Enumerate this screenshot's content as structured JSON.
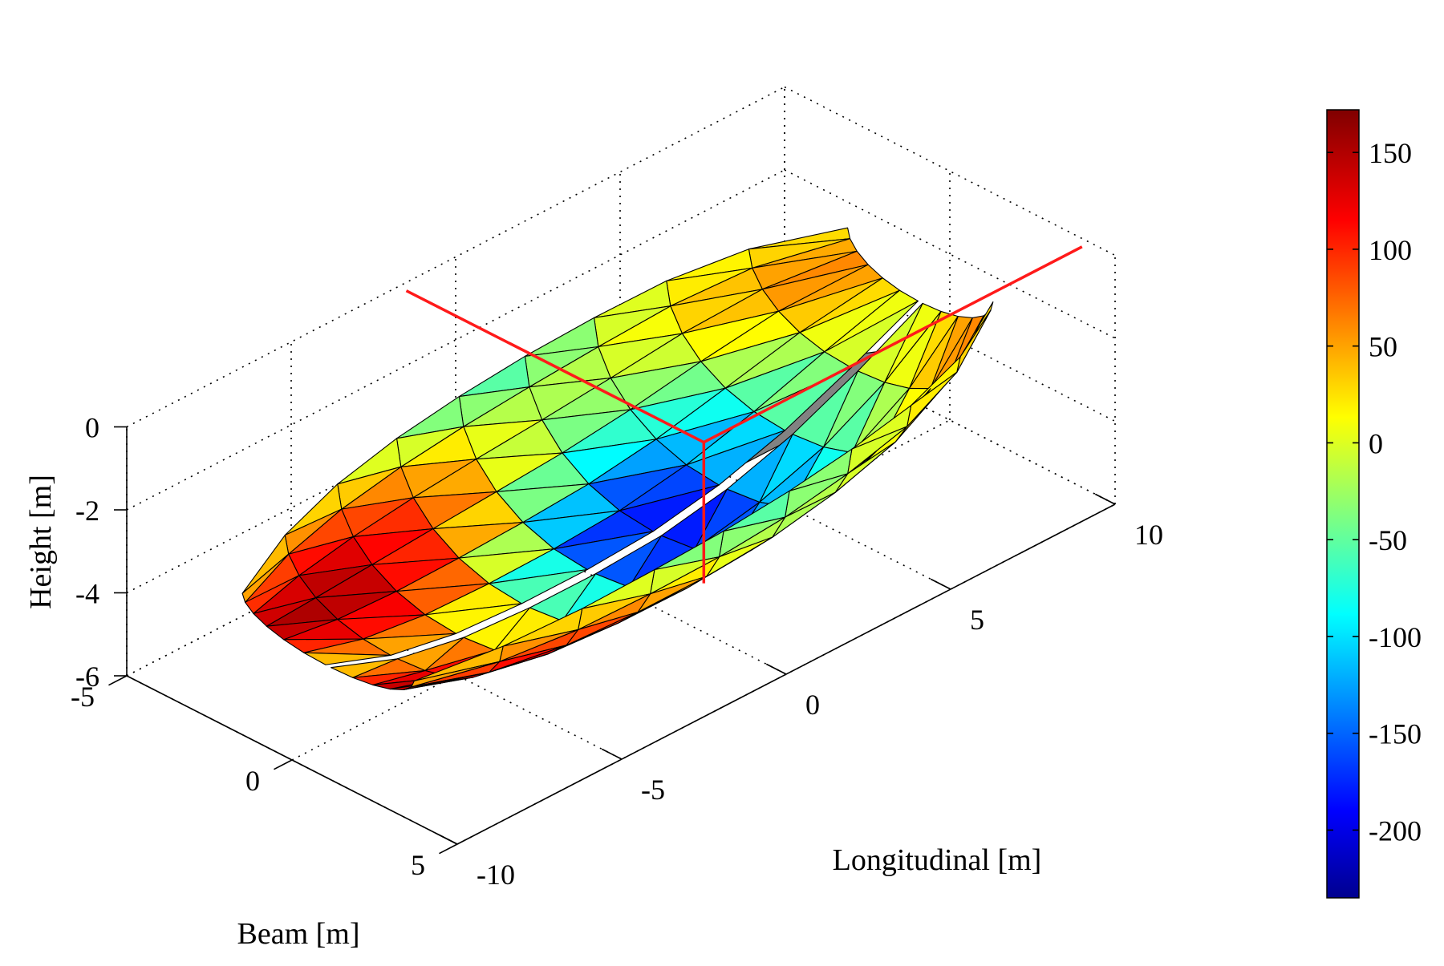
{
  "chart_data": {
    "type": "surface3d",
    "xlabel": "Longitudinal [m]",
    "ylabel": "Beam [m]",
    "zlabel": "Height [m]",
    "xlim": [
      -10,
      10
    ],
    "ylim": [
      -5,
      5
    ],
    "zlim": [
      -6,
      0
    ],
    "x_ticks": [
      "-10",
      "-5",
      "0",
      "5",
      "10"
    ],
    "x_tick_values": [
      -10,
      -5,
      0,
      5,
      10
    ],
    "y_ticks": [
      "-5",
      "0",
      "5"
    ],
    "y_tick_values": [
      -5,
      0,
      5
    ],
    "z_ticks": [
      "0",
      "-2",
      "-4",
      "-6"
    ],
    "z_tick_values": [
      0,
      -2,
      -4,
      -6
    ],
    "grid": true,
    "colorbar": {
      "colormap": "jet",
      "range": [
        -235,
        172
      ],
      "ticks": [
        "150",
        "100",
        "50",
        "0",
        "-50",
        "-100",
        "-150",
        "-200"
      ],
      "tick_values": [
        150,
        100,
        50,
        0,
        -50,
        -100,
        -150,
        -200
      ]
    },
    "hull_surface": {
      "stations_x": [
        -9.5,
        -7.5,
        -5.5,
        -3.5,
        -1.5,
        0.5,
        2.5,
        4.5,
        6.5,
        8.5
      ],
      "half_beam": [
        2.6,
        3.3,
        3.7,
        3.9,
        4.0,
        4.0,
        3.9,
        3.7,
        3.2,
        2.2
      ],
      "keel_z": [
        -4.6,
        -5.2,
        -5.5,
        -5.6,
        -5.6,
        -5.5,
        -5.2,
        -4.7,
        -4.0,
        -3.2
      ],
      "deck_z": [
        -3.9,
        -3.6,
        -3.35,
        -3.15,
        -3.0,
        -2.85,
        -2.7,
        -2.55,
        -2.4,
        -2.3
      ],
      "section_values": [
        [
          20,
          60,
          110,
          150,
          130,
          80,
          20
        ],
        [
          30,
          90,
          140,
          160,
          150,
          110,
          40
        ],
        [
          10,
          70,
          120,
          140,
          130,
          90,
          20
        ],
        [
          -30,
          40,
          90,
          100,
          80,
          30,
          -40
        ],
        [
          -60,
          0,
          40,
          30,
          -20,
          -100,
          -150
        ],
        [
          -60,
          -20,
          -10,
          -40,
          -110,
          -190,
          -200
        ],
        [
          -20,
          0,
          -10,
          -50,
          -100,
          -150,
          -130
        ],
        [
          10,
          30,
          20,
          -10,
          -50,
          -80,
          -60
        ],
        [
          20,
          40,
          60,
          50,
          20,
          -10,
          0
        ],
        [
          30,
          50,
          70,
          70,
          50,
          30,
          20
        ]
      ]
    },
    "deck_plate": {
      "x": [
        -8.0,
        -2.0,
        2.5,
        4.5,
        4.5,
        -8.0
      ],
      "y": [
        1.0,
        1.0,
        2.8,
        4.0,
        5.0,
        5.0
      ],
      "z": -0.4,
      "color": "#828282"
    },
    "reference_point": {
      "x": -1.5,
      "y": 4.0,
      "z": -0.2,
      "drop_to_z": -3.6,
      "line_color": "#ff1a1a"
    }
  }
}
